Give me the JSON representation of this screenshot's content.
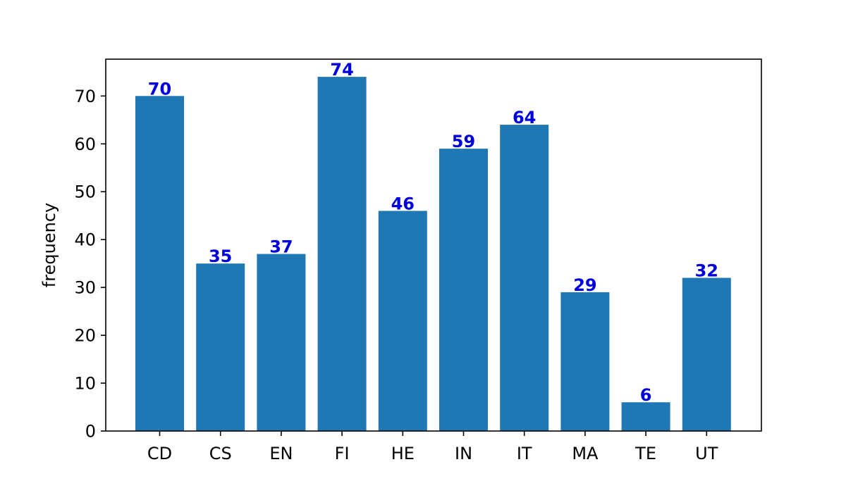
{
  "chart_data": {
    "type": "bar",
    "categories": [
      "CD",
      "CS",
      "EN",
      "FI",
      "HE",
      "IN",
      "IT",
      "MA",
      "TE",
      "UT"
    ],
    "values": [
      70,
      35,
      37,
      74,
      46,
      59,
      64,
      29,
      6,
      32
    ],
    "title": "",
    "xlabel": "",
    "ylabel": "frequency",
    "ylim": [
      0,
      77.7
    ],
    "yticks": [
      0,
      10,
      20,
      30,
      40,
      50,
      60,
      70
    ],
    "grid": false,
    "legend": "none",
    "colors": {
      "bar": "#1f77b4",
      "data_label": "#0000dd",
      "axis": "#000000"
    }
  }
}
